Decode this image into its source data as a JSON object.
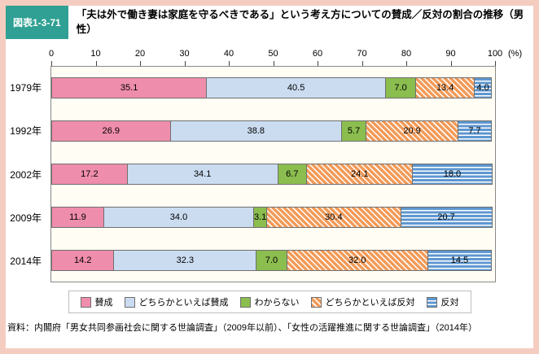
{
  "header": {
    "figure_label": "図表1-3-71",
    "title": "「夫は外で働き妻は家庭を守るべきである」という考え方についての賛成／反対の割合の推移（男性）"
  },
  "chart_data": {
    "type": "bar",
    "stacked": true,
    "orientation": "horizontal",
    "x_axis": {
      "ticks": [
        0,
        10,
        20,
        30,
        40,
        50,
        60,
        70,
        80,
        90,
        100
      ],
      "range": [
        0,
        100
      ],
      "unit_label": "(%)"
    },
    "categories": [
      "1979年",
      "1992年",
      "2002年",
      "2009年",
      "2014年"
    ],
    "series": [
      {
        "name": "賛成",
        "color": "#ef8dac",
        "pattern": "solid",
        "values": [
          35.1,
          26.9,
          17.2,
          11.9,
          14.2
        ]
      },
      {
        "name": "どちらかといえば賛成",
        "color": "#cbdcf1",
        "pattern": "solid",
        "values": [
          40.5,
          38.8,
          34.1,
          34.0,
          32.3
        ]
      },
      {
        "name": "わからない",
        "color": "#8bbd4f",
        "pattern": "solid",
        "values": [
          7.0,
          5.7,
          6.7,
          3.1,
          7.0
        ]
      },
      {
        "name": "どちらかといえば反対",
        "color": "#f29b59",
        "pattern": "diagonal-hatch",
        "values": [
          13.4,
          20.9,
          24.1,
          30.4,
          32.0
        ]
      },
      {
        "name": "反対",
        "color": "#5e97d0",
        "pattern": "horizontal-stripes",
        "values": [
          4.0,
          7.7,
          18.0,
          20.7,
          14.5
        ]
      }
    ],
    "legend_position": "bottom",
    "grid": false
  },
  "source": "資料：内閣府「男女共同参画社会に関する世論調査」（2009年以前）、「女性の活躍推進に関する世論調査」（2014年）",
  "colors": {
    "frame_background": "#f4cdc0",
    "figure_badge_background": "#2fa093",
    "plot_border": "#898989"
  }
}
